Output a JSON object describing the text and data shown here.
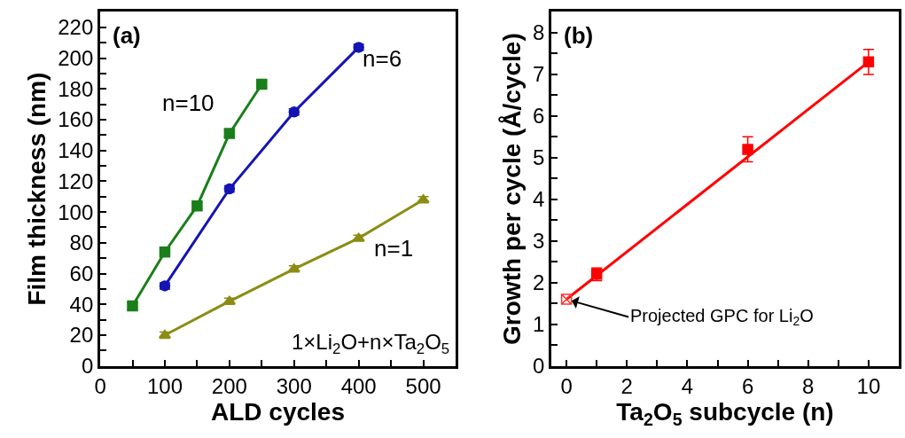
{
  "chart_data": [
    {
      "type": "line",
      "xlabel": "ALD cycles",
      "ylabel": "Film thickness (nm)",
      "xlim": [
        0,
        550
      ],
      "ylim": [
        0,
        230
      ],
      "xticks": [
        0,
        {
          "value": 50,
          "label": null
        },
        100,
        {
          "value": 150,
          "label": null
        },
        200,
        {
          "value": 250,
          "label": null
        },
        300,
        {
          "value": 350,
          "label": null
        },
        400,
        {
          "value": 450,
          "label": null
        },
        500
      ],
      "yticks": [
        0,
        {
          "value": 10,
          "label": null
        },
        20,
        {
          "value": 30,
          "label": null
        },
        40,
        {
          "value": 50,
          "label": null
        },
        60,
        {
          "value": 70,
          "label": null
        },
        80,
        {
          "value": 90,
          "label": null
        },
        100,
        {
          "value": 110,
          "label": null
        },
        120,
        {
          "value": 130,
          "label": null
        },
        140,
        {
          "value": 150,
          "label": null
        },
        160,
        {
          "value": 170,
          "label": null
        },
        180,
        {
          "value": 190,
          "label": null
        },
        200,
        {
          "value": 210,
          "label": null
        },
        220
      ],
      "line_style": "solid",
      "annotations": [
        "(a)",
        "1×Li$_{2}$O+n×Ta$_{2}$O$_{5}$"
      ],
      "series": [
        {
          "name": "n=10",
          "color": "#1a7f1a",
          "marker": "square",
          "x": [
            50,
            100,
            150,
            200,
            250
          ],
          "values": [
            39,
            74,
            104,
            151,
            183
          ],
          "errors": [
            2,
            2,
            2,
            2,
            2
          ]
        },
        {
          "name": "n=6",
          "color": "#1414b4",
          "marker": "circle",
          "x": [
            100,
            200,
            300,
            400
          ],
          "values": [
            52,
            115,
            165,
            207
          ],
          "errors": [
            2,
            2,
            2,
            2
          ]
        },
        {
          "name": "n=1",
          "color": "#8c8c14",
          "marker": "triangle",
          "x": [
            100,
            200,
            300,
            400,
            500
          ],
          "values": [
            20,
            42,
            63,
            83,
            108
          ],
          "errors": [
            2,
            2,
            2,
            2,
            2
          ]
        }
      ]
    },
    {
      "type": "scatter",
      "xlabel": "Ta$_{2}$O$_{5}$ subcycle (n)",
      "ylabel": "Growth per cycle (Å/cycle)",
      "xlim": [
        -0.5,
        11
      ],
      "ylim": [
        0,
        8.5
      ],
      "xticks": [
        0,
        {
          "value": 1,
          "label": null
        },
        2,
        {
          "value": 3,
          "label": null
        },
        4,
        {
          "value": 5,
          "label": null
        },
        6,
        {
          "value": 7,
          "label": null
        },
        8,
        {
          "value": 9,
          "label": null
        },
        10
      ],
      "yticks": [
        0,
        {
          "value": 0.5,
          "label": null
        },
        1,
        {
          "value": 1.5,
          "label": null
        },
        2,
        {
          "value": 2.5,
          "label": null
        },
        3,
        {
          "value": 3.5,
          "label": null
        },
        4,
        {
          "value": 4.5,
          "label": null
        },
        5,
        {
          "value": 5.5,
          "label": null
        },
        6,
        {
          "value": 6.5,
          "label": null
        },
        7,
        {
          "value": 7.5,
          "label": null
        },
        8
      ],
      "annotations": [
        "(b)",
        {
          "text": "Projected GPC for Li$_{2}$O",
          "x": 0,
          "y": 1.6
        }
      ],
      "series": [
        {
          "type": "line",
          "color": "#ff0000",
          "marker": "none",
          "x": [
            0,
            10
          ],
          "values": [
            1.6,
            7.3
          ]
        },
        {
          "color": "#ff0000",
          "marker": "square",
          "x": [
            1,
            6,
            10
          ],
          "values": [
            2.2,
            5.2,
            7.3
          ],
          "errors": [
            0.15,
            0.3,
            0.3
          ]
        },
        {
          "color": "#ff3030",
          "marker": "cross",
          "x": [
            0
          ],
          "values": [
            1.6
          ]
        }
      ]
    }
  ]
}
